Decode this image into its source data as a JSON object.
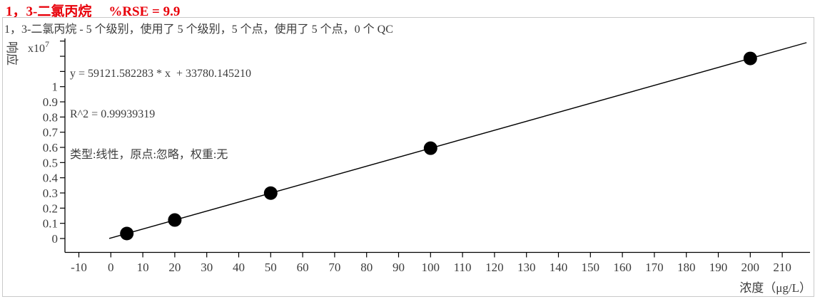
{
  "header": {
    "compound": "1，3-二氯丙烷",
    "rse": "%RSE = 9.9"
  },
  "subtitle": "1，3-二氯丙烷 - 5 个级别，使用了 5 个级别，5 个点，使用了 5 个点，0 个 QC",
  "fit": {
    "equation": "y = 59121.582283 * x  + 33780.145210",
    "r2": "R^2 = 0.99939319",
    "settings": "类型:线性，原点:忽略，权重:无"
  },
  "chart_data": {
    "type": "scatter",
    "title": "1，3-二氯丙烷 - 5 个级别，使用了 5 个级别，5 个点，使用了 5 个点，0 个 QC",
    "xlabel": "浓度（μg/L）",
    "ylabel": "响应",
    "y_scale_base": "x10",
    "y_scale_exp": "7",
    "x": [
      5,
      20,
      50,
      100,
      200
    ],
    "y": [
      329388,
      1216212,
      2989859,
      5945938,
      11858097
    ],
    "x_tick_labels": [
      "-10",
      "0",
      "10",
      "20",
      "30",
      "40",
      "50",
      "60",
      "70",
      "80",
      "90",
      "100",
      "110",
      "120",
      "130",
      "140",
      "150",
      "160",
      "170",
      "180",
      "190",
      "200",
      "210"
    ],
    "y_tick_labels": [
      "0",
      "0.1",
      "0.2",
      "0.3",
      "0.4",
      "0.5",
      "0.6",
      "0.7",
      "0.8",
      "0.9",
      "1"
    ],
    "y_ticks_unlabeled": [
      1.1,
      1.2,
      1.3
    ],
    "x_range": [
      -14.5,
      219
    ],
    "y_range": [
      -900000,
      13000000
    ],
    "grid": false,
    "fit_line": {
      "slope": 59121.582283,
      "intercept": 33780.14521,
      "x_start": -0.5,
      "x_end": 217.6
    }
  },
  "colors": {
    "title": "#e8000a",
    "text": "#3c3c3c",
    "plot": "#000000",
    "border": "#c9c9c9"
  }
}
